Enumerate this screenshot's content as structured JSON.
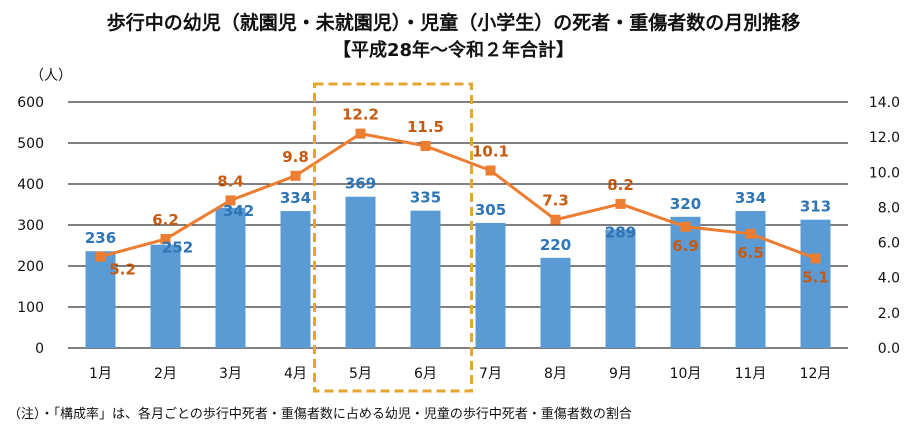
{
  "chart_data": {
    "type": "bar+line",
    "title": "歩行中の幼児（就園児・未就園児）・児童（小学生）の死者・重傷者数の月別推移",
    "subtitle": "【平成28年～令和２年合計】",
    "ylabel": "（人）",
    "categories": [
      "1月",
      "2月",
      "3月",
      "4月",
      "5月",
      "6月",
      "7月",
      "8月",
      "9月",
      "10月",
      "11月",
      "12月"
    ],
    "series": [
      {
        "name": "死者・重傷者数",
        "type": "bar",
        "axis": "left",
        "color": "#5b9bd5",
        "label_color": "#2e75b6",
        "values": [
          236,
          252,
          342,
          334,
          369,
          335,
          305,
          220,
          289,
          320,
          334,
          313
        ]
      },
      {
        "name": "構成率",
        "type": "line",
        "axis": "right",
        "color": "#ed7d31",
        "label_color": "#c55a11",
        "values": [
          5.2,
          6.2,
          8.4,
          9.8,
          12.2,
          11.5,
          10.1,
          7.3,
          8.2,
          6.9,
          6.5,
          5.1
        ]
      }
    ],
    "ylim": [
      0,
      600
    ],
    "yticks": [
      "0",
      "100",
      "200",
      "300",
      "400",
      "500",
      "600"
    ],
    "y2lim": [
      0,
      14
    ],
    "y2ticks": [
      "0.0",
      "2.0",
      "4.0",
      "6.0",
      "8.0",
      "10.0",
      "12.0",
      "14.0"
    ],
    "grid": true,
    "highlight": {
      "categories": [
        "5月",
        "6月"
      ],
      "color": "#e6a52e"
    }
  },
  "note": "（注）・「構成率」は、各月ごとの歩行中死者・重傷者数に占める幼児・児童の歩行中死者・重傷者数の割合"
}
